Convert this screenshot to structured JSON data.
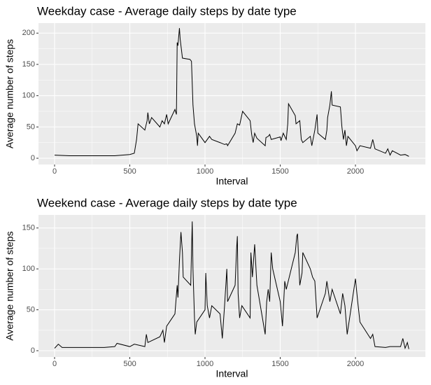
{
  "chart_data": [
    {
      "type": "line",
      "title": "Weekday case - Average daily steps by date type",
      "x_label": "Interval",
      "y_label": "Average number of steps",
      "color": "#000000",
      "grid": true,
      "x": [
        0,
        100,
        200,
        300,
        400,
        500,
        530,
        545,
        555,
        600,
        615,
        620,
        630,
        645,
        700,
        715,
        730,
        745,
        755,
        800,
        810,
        815,
        820,
        830,
        835,
        845,
        850,
        900,
        910,
        920,
        930,
        945,
        950,
        955,
        1000,
        1030,
        1045,
        1100,
        1130,
        1145,
        1150,
        1200,
        1215,
        1230,
        1250,
        1300,
        1310,
        1320,
        1330,
        1345,
        1400,
        1405,
        1420,
        1430,
        1440,
        1500,
        1505,
        1520,
        1540,
        1550,
        1555,
        1600,
        1605,
        1630,
        1640,
        1650,
        1700,
        1710,
        1730,
        1745,
        1750,
        1800,
        1810,
        1815,
        1830,
        1840,
        1845,
        1900,
        1910,
        1920,
        1930,
        1940,
        1950,
        2000,
        2010,
        2030,
        2100,
        2115,
        2130,
        2200,
        2215,
        2230,
        2245,
        2300,
        2330,
        2355
      ],
      "values": [
        5,
        4,
        4,
        4,
        4,
        6,
        8,
        30,
        55,
        45,
        60,
        73,
        55,
        65,
        50,
        60,
        55,
        70,
        55,
        78,
        70,
        185,
        180,
        208,
        190,
        170,
        160,
        158,
        155,
        85,
        55,
        35,
        20,
        40,
        25,
        35,
        30,
        25,
        22,
        23,
        20,
        40,
        55,
        53,
        75,
        60,
        38,
        25,
        40,
        32,
        20,
        33,
        35,
        38,
        30,
        34,
        28,
        40,
        30,
        55,
        87,
        68,
        55,
        60,
        30,
        25,
        35,
        20,
        45,
        70,
        40,
        30,
        45,
        65,
        85,
        107,
        85,
        82,
        50,
        30,
        45,
        20,
        35,
        20,
        12,
        20,
        16,
        30,
        15,
        8,
        15,
        5,
        12,
        5,
        6,
        3
      ],
      "xlim": [
        -107,
        2465
      ],
      "ylim": [
        -10,
        216
      ],
      "xticks": [
        0,
        500,
        1000,
        1500,
        2000
      ],
      "yticks": [
        0,
        50,
        100,
        150,
        200
      ]
    },
    {
      "type": "line",
      "title": "Weekend case - Average daily steps by date type",
      "x_label": "Interval",
      "y_label": "Average number of steps",
      "color": "#000000",
      "grid": true,
      "x": [
        0,
        25,
        50,
        200,
        330,
        400,
        415,
        500,
        530,
        600,
        610,
        620,
        700,
        720,
        730,
        745,
        800,
        815,
        820,
        830,
        840,
        850,
        855,
        905,
        915,
        920,
        930,
        935,
        945,
        1000,
        1005,
        1015,
        1030,
        1045,
        1100,
        1115,
        1130,
        1145,
        1150,
        1200,
        1210,
        1215,
        1220,
        1230,
        1245,
        1300,
        1305,
        1315,
        1330,
        1345,
        1400,
        1410,
        1420,
        1430,
        1440,
        1450,
        1500,
        1515,
        1530,
        1540,
        1600,
        1610,
        1615,
        1630,
        1645,
        1650,
        1700,
        1715,
        1730,
        1745,
        1800,
        1810,
        1830,
        1845,
        1900,
        1915,
        1930,
        1945,
        2000,
        2015,
        2030,
        2100,
        2115,
        2130,
        2200,
        2230,
        2300,
        2315,
        2330,
        2345,
        2355
      ],
      "values": [
        3,
        8,
        4,
        4,
        4,
        5,
        9,
        5,
        8,
        5,
        20,
        10,
        17,
        25,
        10,
        30,
        45,
        80,
        65,
        110,
        145,
        120,
        90,
        80,
        158,
        100,
        40,
        20,
        35,
        50,
        95,
        55,
        40,
        55,
        45,
        15,
        55,
        100,
        60,
        80,
        125,
        140,
        70,
        40,
        55,
        40,
        120,
        90,
        130,
        80,
        20,
        60,
        75,
        60,
        120,
        100,
        60,
        30,
        85,
        75,
        120,
        140,
        143,
        80,
        95,
        120,
        100,
        90,
        85,
        40,
        70,
        85,
        60,
        75,
        45,
        70,
        55,
        20,
        88,
        60,
        35,
        15,
        20,
        5,
        4,
        5,
        5,
        15,
        3,
        10,
        2
      ],
      "xlim": [
        -107,
        2465
      ],
      "ylim": [
        -7.7,
        166
      ],
      "xticks": [
        0,
        500,
        1000,
        1500,
        2000
      ],
      "yticks": [
        0,
        50,
        100,
        150
      ]
    }
  ]
}
